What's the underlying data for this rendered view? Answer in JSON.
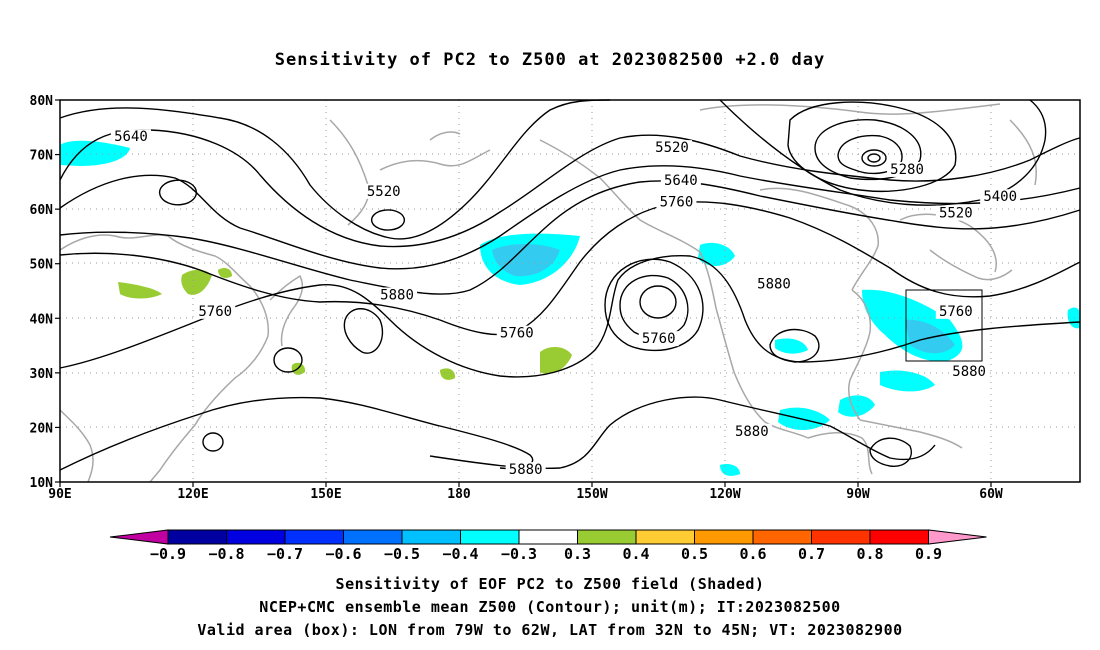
{
  "title": "Sensitivity of PC2 to Z500 at 2023082500 +2.0 day",
  "map": {
    "lat_labels": [
      "80N",
      "70N",
      "60N",
      "50N",
      "40N",
      "30N",
      "20N",
      "10N"
    ],
    "lon_labels": [
      "90E",
      "120E",
      "150E",
      "180",
      "150W",
      "120W",
      "90W",
      "60W"
    ],
    "lat_range": [
      10,
      80
    ],
    "lon_range_deg_east": [
      90,
      320
    ],
    "gridlines": "dotted",
    "contour_labels": [
      {
        "text": "5640",
        "lon": 106,
        "lat": 73
      },
      {
        "text": "5520",
        "lon": 163,
        "lat": 63
      },
      {
        "text": "5520",
        "lon": 228,
        "lat": 71
      },
      {
        "text": "5640",
        "lon": 230,
        "lat": 65
      },
      {
        "text": "5760",
        "lon": 229,
        "lat": 61
      },
      {
        "text": "5280",
        "lon": 281,
        "lat": 67
      },
      {
        "text": "5400",
        "lon": 302,
        "lat": 62
      },
      {
        "text": "5520",
        "lon": 292,
        "lat": 59
      },
      {
        "text": "5880",
        "lon": 166,
        "lat": 44
      },
      {
        "text": "5760",
        "lon": 125,
        "lat": 41
      },
      {
        "text": "5760",
        "lon": 193,
        "lat": 37
      },
      {
        "text": "5760",
        "lon": 225,
        "lat": 36
      },
      {
        "text": "5880",
        "lon": 251,
        "lat": 46
      },
      {
        "text": "5760",
        "lon": 292,
        "lat": 41
      },
      {
        "text": "5880",
        "lon": 295,
        "lat": 30
      },
      {
        "text": "5880",
        "lon": 246,
        "lat": 19
      },
      {
        "text": "5880",
        "lon": 195,
        "lat": 12
      }
    ],
    "valid_box": {
      "lon_w": 79,
      "lon_e": 62,
      "lat_s": 32,
      "lat_n": 45
    }
  },
  "colorbar": {
    "labels": [
      "−0.9",
      "−0.8",
      "−0.7",
      "−0.6",
      "−0.5",
      "−0.4",
      "−0.3",
      "0.3",
      "0.4",
      "0.5",
      "0.6",
      "0.7",
      "0.8",
      "0.9"
    ],
    "colors": [
      "#0000a0",
      "#0000e0",
      "#0030ff",
      "#0070ff",
      "#00c0ff",
      "#00ffff",
      "#ffffff",
      "#99cc33",
      "#ffcc33",
      "#ff9900",
      "#ff6600",
      "#ff3300",
      "#ff0000"
    ],
    "low_end_color": "#c000a0",
    "high_end_color": "#ff99cc"
  },
  "footer": {
    "line1": "Sensitivity of EOF PC2 to Z500 field (Shaded)",
    "line2": "NCEP+CMC ensemble mean Z500 (Contour); unit(m); IT:2023082500",
    "line3": "Valid area (box): LON from 79W to 62W, LAT from 32N to 45N; VT: 2023082900"
  }
}
